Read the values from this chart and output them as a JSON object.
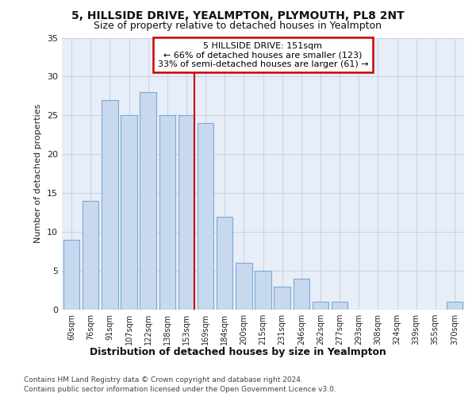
{
  "title1": "5, HILLSIDE DRIVE, YEALMPTON, PLYMOUTH, PL8 2NT",
  "title2": "Size of property relative to detached houses in Yealmpton",
  "xlabel": "Distribution of detached houses by size in Yealmpton",
  "ylabel": "Number of detached properties",
  "categories": [
    "60sqm",
    "76sqm",
    "91sqm",
    "107sqm",
    "122sqm",
    "138sqm",
    "153sqm",
    "169sqm",
    "184sqm",
    "200sqm",
    "215sqm",
    "231sqm",
    "246sqm",
    "262sqm",
    "277sqm",
    "293sqm",
    "308sqm",
    "324sqm",
    "339sqm",
    "355sqm",
    "370sqm"
  ],
  "values": [
    9,
    14,
    27,
    25,
    28,
    25,
    25,
    24,
    12,
    6,
    5,
    3,
    4,
    1,
    1,
    0,
    0,
    0,
    0,
    0,
    1
  ],
  "bar_color": "#c8d8ee",
  "bar_edge_color": "#7baad4",
  "highlight_bar_index": 6,
  "red_line_color": "#cc0000",
  "annotation_title": "5 HILLSIDE DRIVE: 151sqm",
  "annotation_line1": "← 66% of detached houses are smaller (123)",
  "annotation_line2": "33% of semi-detached houses are larger (61) →",
  "annotation_box_facecolor": "#ffffff",
  "annotation_box_edgecolor": "#cc0000",
  "footer1": "Contains HM Land Registry data © Crown copyright and database right 2024.",
  "footer2": "Contains public sector information licensed under the Open Government Licence v3.0.",
  "fig_bg_color": "#ffffff",
  "plot_bg_color": "#e8eef8",
  "grid_color": "#c8d4e8",
  "ylim": [
    0,
    35
  ],
  "yticks": [
    0,
    5,
    10,
    15,
    20,
    25,
    30,
    35
  ]
}
